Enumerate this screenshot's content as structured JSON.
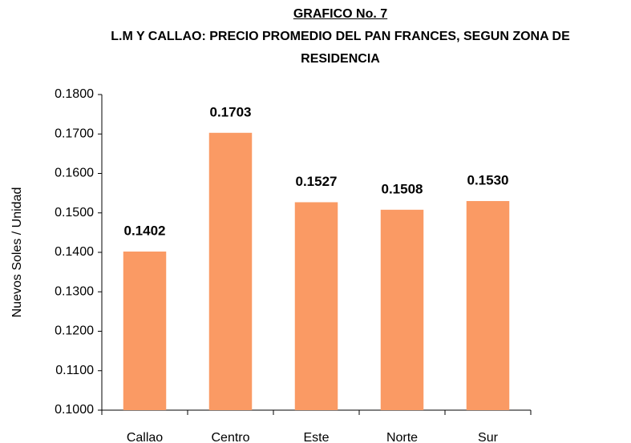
{
  "chart_data": {
    "type": "bar",
    "title": "GRAFICO No. 7",
    "subtitle": "L.M Y CALLAO: PRECIO PROMEDIO DEL PAN FRANCES, SEGUN ZONA DE RESIDENCIA",
    "y_label": "Nuevos Soles / Unidad",
    "categories": [
      "Callao",
      "Centro",
      "Este",
      "Norte",
      "Sur"
    ],
    "values": [
      0.1402,
      0.1703,
      0.1527,
      0.1508,
      0.153
    ],
    "value_labels": [
      "0.1402",
      "0.1703",
      "0.1527",
      "0.1508",
      "0.1530"
    ],
    "color": "#fa9a64",
    "ylim": [
      0.1,
      0.18
    ],
    "yticks": [
      {
        "value": 0.1,
        "label": "0.1000"
      },
      {
        "value": 0.11,
        "label": "0.1100"
      },
      {
        "value": 0.12,
        "label": "0.1200"
      },
      {
        "value": 0.13,
        "label": "0.1300"
      },
      {
        "value": 0.14,
        "label": "0.1400"
      },
      {
        "value": 0.15,
        "label": "0.1500"
      },
      {
        "value": 0.16,
        "label": "0.1600"
      },
      {
        "value": 0.17,
        "label": "0.1700"
      },
      {
        "value": 0.18,
        "label": "0.1800"
      }
    ],
    "grid": false
  }
}
